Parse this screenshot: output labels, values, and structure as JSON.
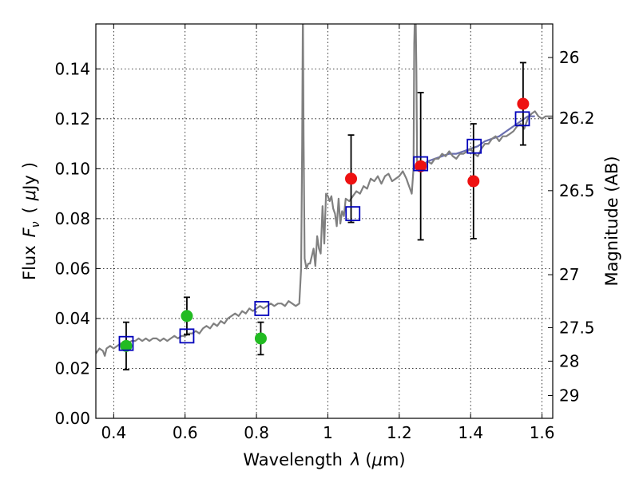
{
  "chart_data": {
    "type": "scatter",
    "xlabel": "Wavelength",
    "xlabel_symbol": "λ",
    "xlabel_unit_pre": "(",
    "xlabel_unit_mu": "μ",
    "xlabel_unit_post": "m)",
    "ylabel_flux": "Flux",
    "ylabel_symbol": "F",
    "ylabel_sub": "ν",
    "ylabel_paren_open": "(",
    "ylabel_mu": "μ",
    "ylabel_unit": "Jy",
    "ylabel_paren_close": ")",
    "y2label": "Magnitude (AB)",
    "xlim": [
      0.35,
      1.63
    ],
    "ylim": [
      0.0,
      0.158
    ],
    "grid": true,
    "x_ticks": [
      {
        "value": 0.4,
        "label": "0.4"
      },
      {
        "value": 0.6,
        "label": "0.6"
      },
      {
        "value": 0.8,
        "label": "0.8"
      },
      {
        "value": 1.0,
        "label": "1"
      },
      {
        "value": 1.2,
        "label": "1.2"
      },
      {
        "value": 1.4,
        "label": "1.4"
      },
      {
        "value": 1.6,
        "label": "1.6"
      }
    ],
    "y_ticks": [
      {
        "value": 0.0,
        "label": "0.00"
      },
      {
        "value": 0.02,
        "label": "0.02"
      },
      {
        "value": 0.04,
        "label": "0.04"
      },
      {
        "value": 0.06,
        "label": "0.06"
      },
      {
        "value": 0.08,
        "label": "0.08"
      },
      {
        "value": 0.1,
        "label": "0.10"
      },
      {
        "value": 0.12,
        "label": "0.12"
      },
      {
        "value": 0.14,
        "label": "0.14"
      }
    ],
    "y2_ticks": [
      {
        "value": 26.0,
        "label": "26"
      },
      {
        "value": 26.2,
        "label": "26.2"
      },
      {
        "value": 26.5,
        "label": "26.5"
      },
      {
        "value": 27.0,
        "label": "27"
      },
      {
        "value": 27.5,
        "label": "27.5"
      },
      {
        "value": 28.0,
        "label": "28"
      },
      {
        "value": 29.0,
        "label": "29"
      }
    ],
    "colors": {
      "model": "#808080",
      "model_ir": "#6a6fb0",
      "green": "#22bb22",
      "red": "#ee1111",
      "square": "#0000bb",
      "errbar": "#000000"
    },
    "series": [
      {
        "name": "model_spectrum",
        "x": [
          0.35,
          0.36,
          0.37,
          0.375,
          0.38,
          0.39,
          0.4,
          0.41,
          0.42,
          0.43,
          0.44,
          0.45,
          0.46,
          0.47,
          0.48,
          0.49,
          0.5,
          0.51,
          0.52,
          0.53,
          0.54,
          0.55,
          0.56,
          0.57,
          0.58,
          0.59,
          0.6,
          0.61,
          0.62,
          0.63,
          0.64,
          0.65,
          0.66,
          0.67,
          0.68,
          0.69,
          0.7,
          0.71,
          0.72,
          0.73,
          0.74,
          0.75,
          0.76,
          0.77,
          0.78,
          0.79,
          0.8,
          0.81,
          0.82,
          0.83,
          0.84,
          0.85,
          0.86,
          0.87,
          0.88,
          0.89,
          0.9,
          0.91,
          0.92,
          0.925,
          0.928,
          0.93,
          0.932,
          0.935,
          0.94,
          0.945,
          0.95,
          0.955,
          0.96,
          0.965,
          0.97,
          0.975,
          0.98,
          0.985,
          0.99,
          0.995,
          1.0,
          1.005,
          1.01,
          1.015,
          1.02,
          1.025,
          1.03,
          1.035,
          1.04,
          1.045,
          1.05,
          1.06,
          1.07,
          1.08,
          1.09,
          1.1,
          1.11,
          1.12,
          1.13,
          1.14,
          1.15,
          1.16,
          1.17,
          1.18,
          1.19,
          1.2,
          1.21,
          1.22,
          1.225,
          1.23,
          1.235,
          1.24,
          1.242,
          1.245,
          1.248,
          1.25,
          1.255,
          1.26,
          1.27,
          1.28,
          1.29,
          1.3,
          1.31,
          1.32,
          1.33,
          1.34,
          1.35,
          1.36,
          1.37,
          1.38,
          1.39,
          1.4,
          1.41,
          1.42,
          1.43,
          1.44,
          1.45,
          1.46,
          1.47,
          1.48,
          1.49,
          1.5,
          1.51,
          1.52,
          1.53,
          1.54,
          1.55,
          1.56,
          1.57,
          1.58,
          1.59,
          1.6,
          1.61,
          1.62,
          1.63
        ],
        "y": [
          0.026,
          0.028,
          0.027,
          0.025,
          0.028,
          0.029,
          0.028,
          0.029,
          0.03,
          0.029,
          0.03,
          0.031,
          0.031,
          0.032,
          0.031,
          0.032,
          0.031,
          0.032,
          0.032,
          0.031,
          0.032,
          0.031,
          0.032,
          0.033,
          0.032,
          0.033,
          0.033,
          0.034,
          0.034,
          0.035,
          0.034,
          0.036,
          0.037,
          0.036,
          0.038,
          0.037,
          0.039,
          0.038,
          0.04,
          0.041,
          0.042,
          0.041,
          0.043,
          0.042,
          0.044,
          0.043,
          0.044,
          0.045,
          0.044,
          0.045,
          0.046,
          0.045,
          0.046,
          0.046,
          0.045,
          0.047,
          0.046,
          0.045,
          0.046,
          0.06,
          0.11,
          0.165,
          0.112,
          0.064,
          0.06,
          0.062,
          0.062,
          0.065,
          0.068,
          0.061,
          0.073,
          0.068,
          0.066,
          0.085,
          0.07,
          0.09,
          0.089,
          0.087,
          0.089,
          0.084,
          0.082,
          0.077,
          0.088,
          0.078,
          0.083,
          0.081,
          0.088,
          0.087,
          0.089,
          0.091,
          0.09,
          0.093,
          0.092,
          0.096,
          0.095,
          0.097,
          0.094,
          0.097,
          0.098,
          0.095,
          0.096,
          0.097,
          0.099,
          0.096,
          0.094,
          0.092,
          0.09,
          0.1,
          0.15,
          0.17,
          0.14,
          0.102,
          0.1,
          0.099,
          0.101,
          0.103,
          0.102,
          0.104,
          0.104,
          0.106,
          0.105,
          0.107,
          0.105,
          0.104,
          0.106,
          0.106,
          0.107,
          0.108,
          0.106,
          0.105,
          0.108,
          0.11,
          0.11,
          0.112,
          0.113,
          0.111,
          0.113,
          0.113,
          0.114,
          0.115,
          0.117,
          0.118,
          0.116,
          0.12,
          0.122,
          0.123,
          0.121,
          0.12,
          0.121,
          0.121,
          0.121
        ]
      },
      {
        "name": "model_ir_segment",
        "x": [
          1.24,
          1.26,
          1.28,
          1.3,
          1.32,
          1.34,
          1.36,
          1.38,
          1.4,
          1.42,
          1.44,
          1.46,
          1.48,
          1.5,
          1.52,
          1.54,
          1.56,
          1.58
        ],
        "y": [
          0.1,
          0.101,
          0.103,
          0.104,
          0.105,
          0.106,
          0.106,
          0.107,
          0.108,
          0.109,
          0.111,
          0.112,
          0.113,
          0.115,
          0.117,
          0.119,
          0.121,
          0.121
        ]
      },
      {
        "name": "green_points",
        "x": [
          0.435,
          0.605,
          0.812
        ],
        "y": [
          0.029,
          0.041,
          0.032
        ],
        "yerr": [
          0.0095,
          0.0075,
          0.0065
        ]
      },
      {
        "name": "red_points",
        "x": [
          1.065,
          1.26,
          1.408,
          1.547
        ],
        "y": [
          0.096,
          0.101,
          0.095,
          0.126
        ],
        "yerr": [
          0.0175,
          0.0295,
          0.023,
          0.0165
        ]
      },
      {
        "name": "model_squares",
        "x": [
          0.435,
          0.605,
          0.815,
          1.07,
          1.26,
          1.41,
          1.545
        ],
        "y": [
          0.03,
          0.033,
          0.044,
          0.082,
          0.102,
          0.109,
          0.12
        ]
      }
    ]
  }
}
